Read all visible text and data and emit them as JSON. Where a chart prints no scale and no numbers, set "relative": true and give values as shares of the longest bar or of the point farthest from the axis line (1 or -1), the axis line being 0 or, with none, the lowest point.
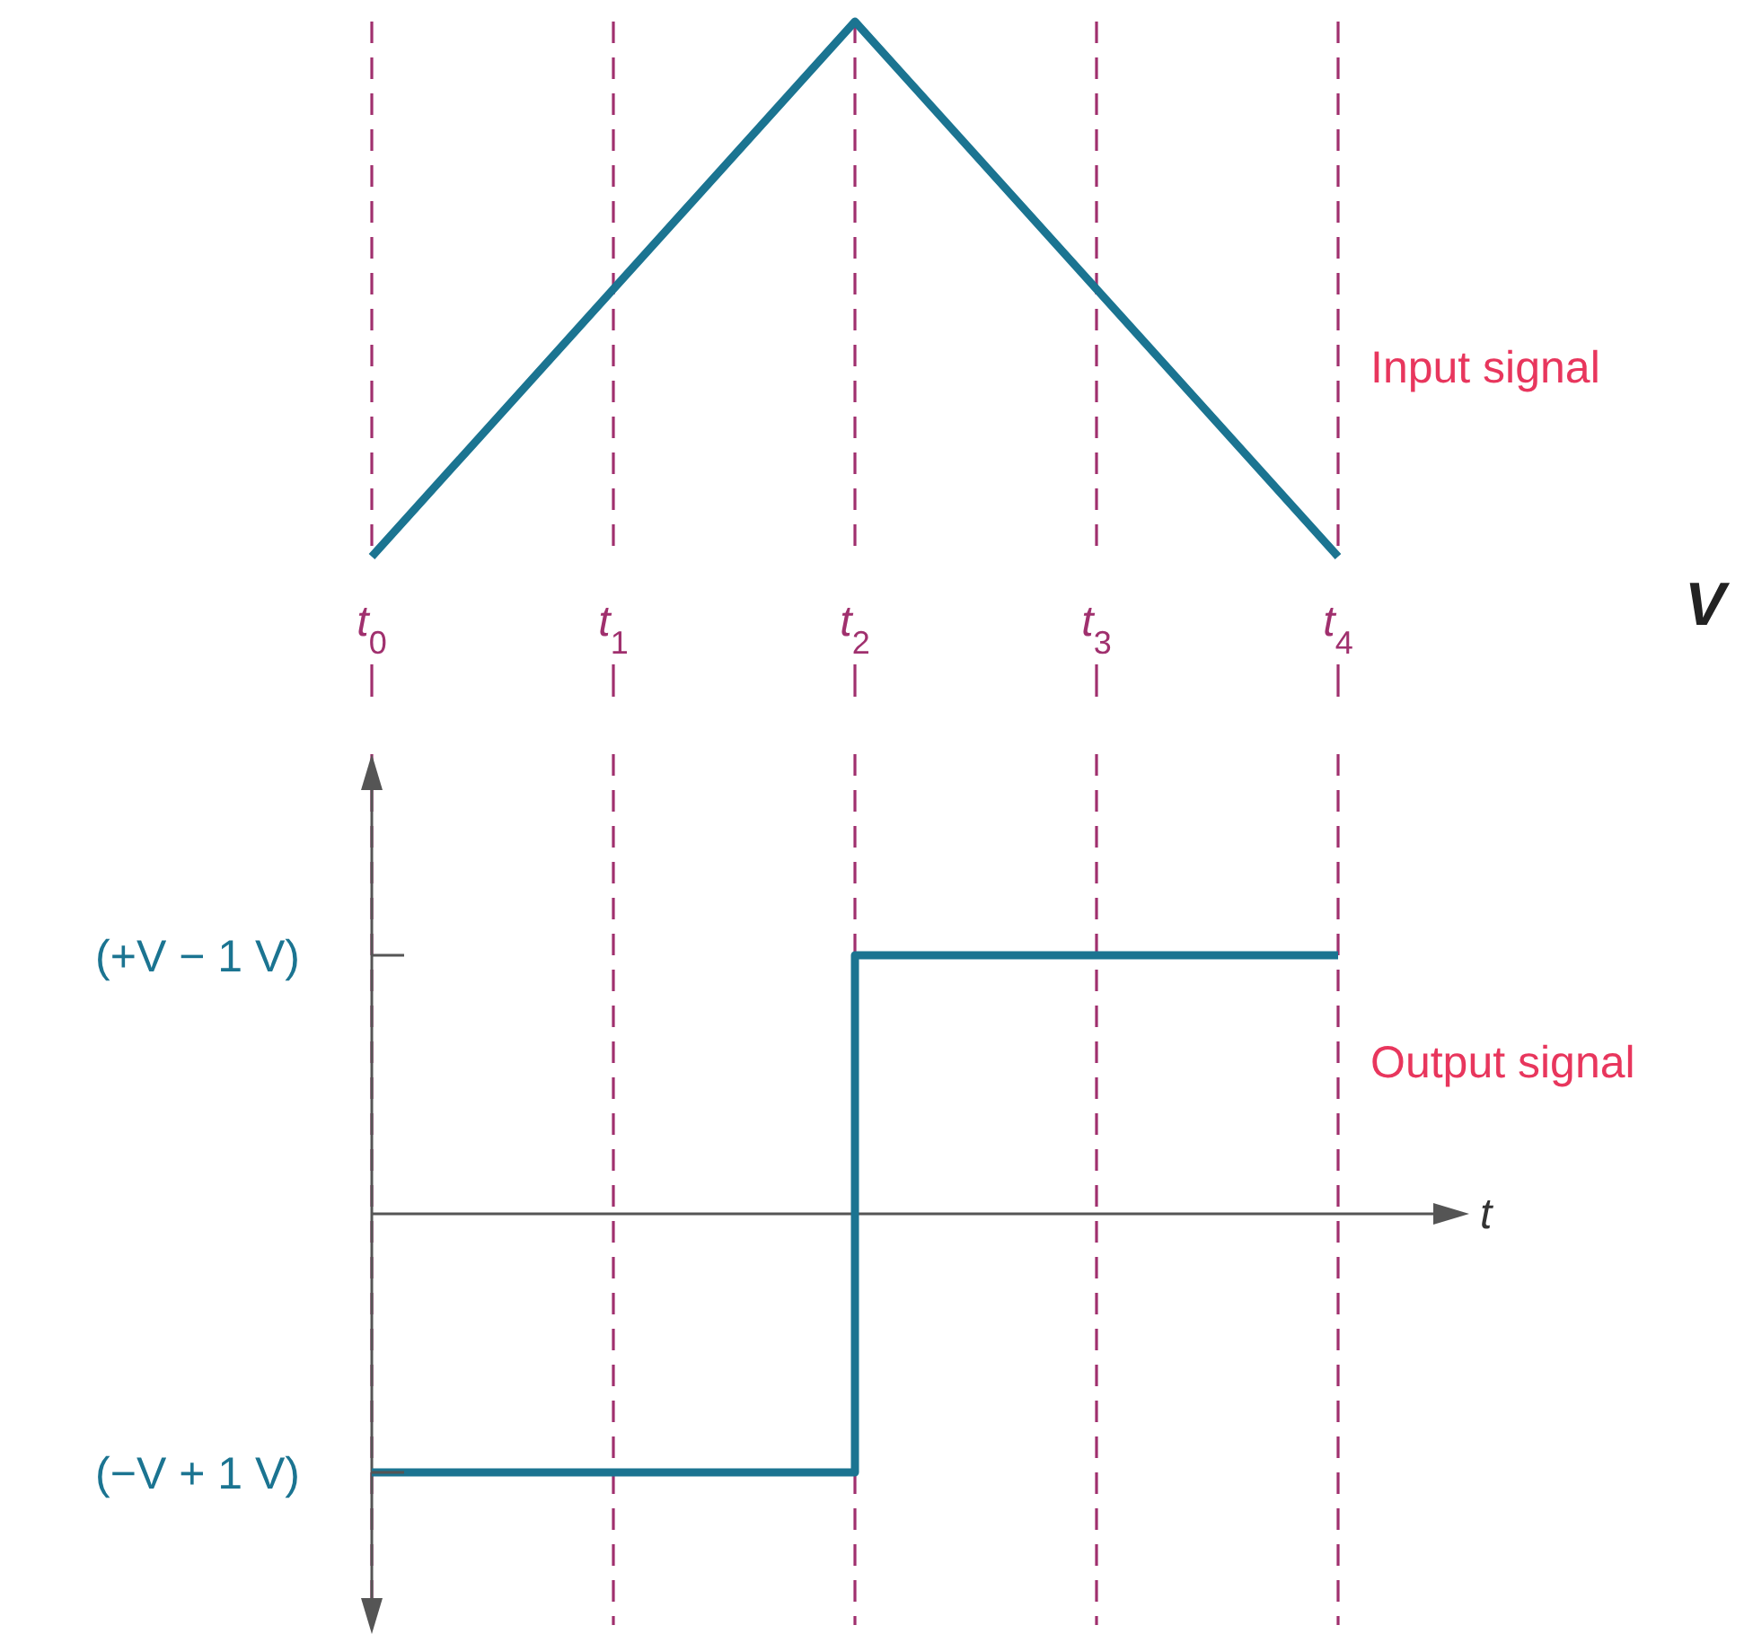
{
  "chart_data": [
    {
      "type": "line",
      "categories": [
        "t$_{0}$",
        "t$_{1}$",
        "t$_{2}$",
        "t$_{3}$",
        "t$_{4}$"
      ],
      "relative": true,
      "grid": "x",
      "series": [
        {
          "color": "#1b7491",
          "values": [
            0,
            0.5,
            1,
            0.5,
            0
          ]
        }
      ],
      "annotations": [
        "Input signal",
        "V"
      ]
    },
    {
      "type": "step",
      "categories": [
        null,
        null,
        null,
        null,
        null
      ],
      "relative": true,
      "grid": "x",
      "xlabel": "t",
      "series": [
        {
          "color": "#1b7491",
          "values": [
            -1,
            -1,
            1,
            1,
            1
          ]
        }
      ],
      "annotations": [
        "(+V − 1 V)",
        "(−V + 1 V)",
        "Output signal"
      ]
    }
  ]
}
